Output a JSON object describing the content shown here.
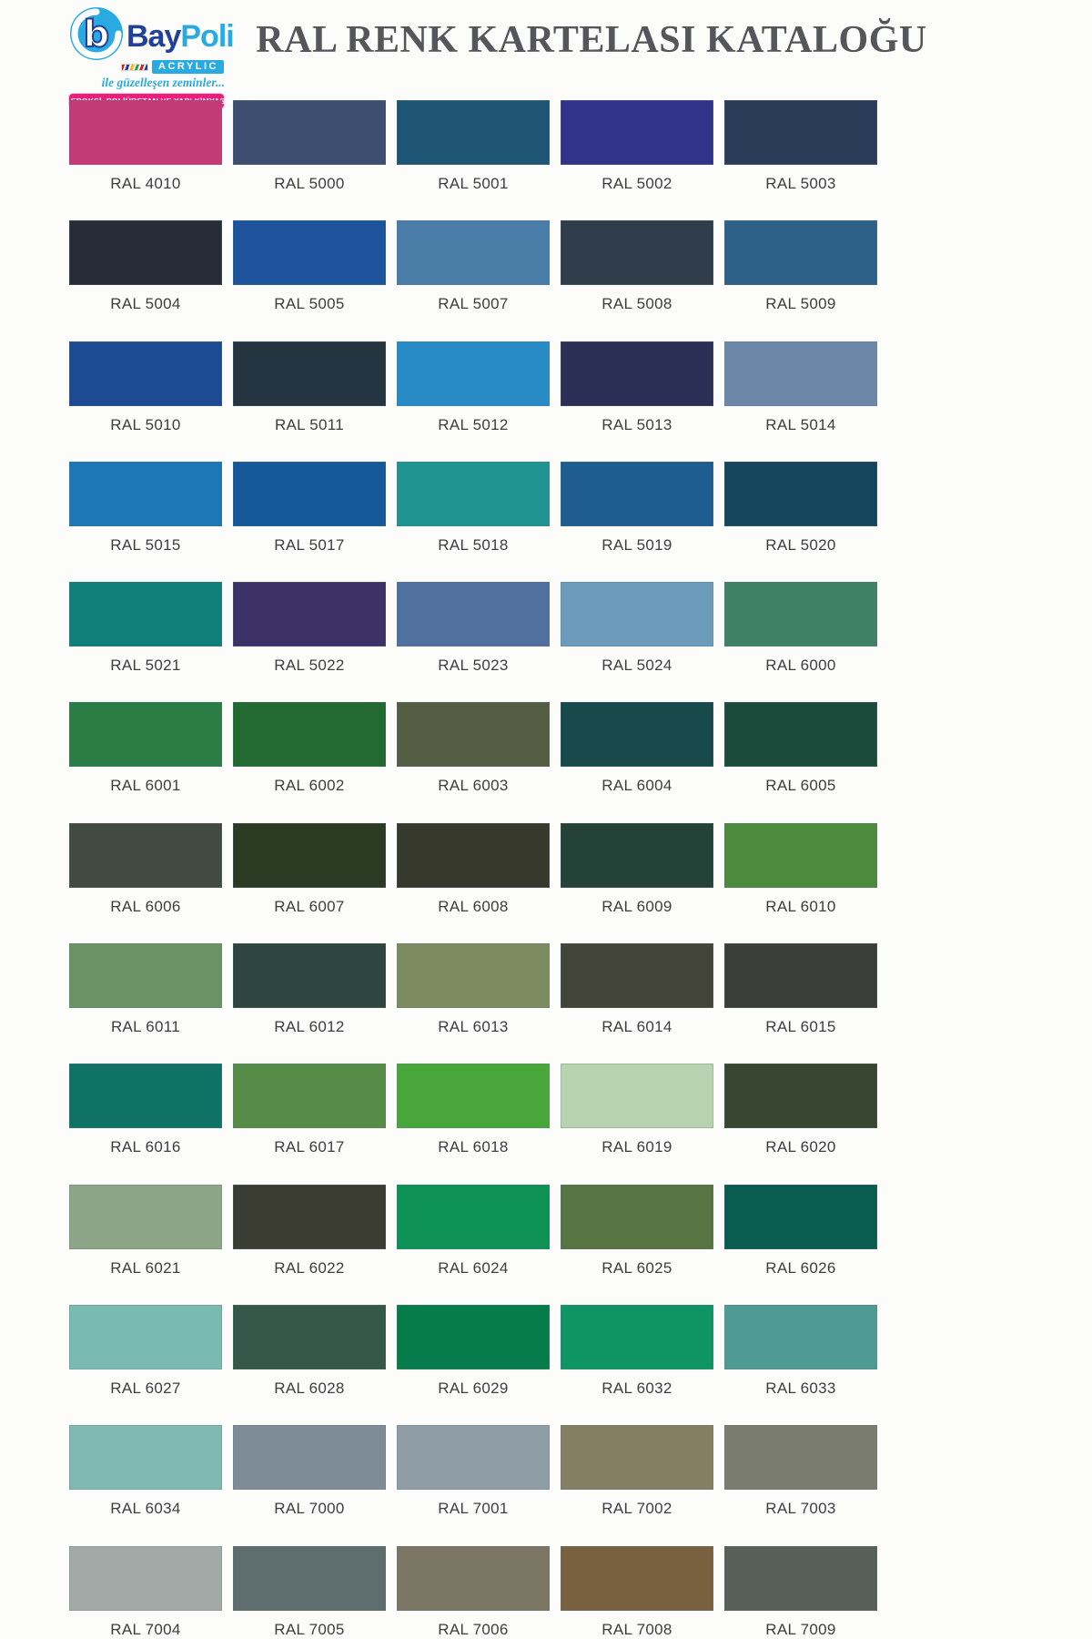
{
  "header": {
    "title": "RAL RENK KARTELASI KATALOĞU",
    "logo": {
      "brand_bay": "Bay",
      "brand_poli": "Poli",
      "acrylic_label": "ACRYLIC",
      "tagline": "ile güzelleşen zeminler...",
      "banner": "EPOKSİ, POLİÜRETAN VE YAPI KİMYASALLARI"
    }
  },
  "palette": {
    "accent_cyan": "#29ABE2",
    "accent_navy": "#21409A",
    "accent_magenta": "#EC1E79",
    "title_color": "#55565A",
    "label_color": "#3C3E40",
    "page_background": "#FCFCFA"
  },
  "swatches": [
    {
      "code": "RAL 4010",
      "hex": "#C43A76"
    },
    {
      "code": "RAL 5000",
      "hex": "#3D4E70"
    },
    {
      "code": "RAL 5001",
      "hex": "#1F5574"
    },
    {
      "code": "RAL 5002",
      "hex": "#31338A"
    },
    {
      "code": "RAL 5003",
      "hex": "#2B3C59"
    },
    {
      "code": "RAL 5004",
      "hex": "#282B38"
    },
    {
      "code": "RAL 5005",
      "hex": "#1D549B"
    },
    {
      "code": "RAL 5007",
      "hex": "#4A7CA8"
    },
    {
      "code": "RAL 5008",
      "hex": "#2F3E4A"
    },
    {
      "code": "RAL 5009",
      "hex": "#2D6187"
    },
    {
      "code": "RAL 5010",
      "hex": "#1C4B94"
    },
    {
      "code": "RAL 5011",
      "hex": "#253441"
    },
    {
      "code": "RAL 5012",
      "hex": "#298BC5"
    },
    {
      "code": "RAL 5013",
      "hex": "#2B2F55"
    },
    {
      "code": "RAL 5014",
      "hex": "#6D87A8"
    },
    {
      "code": "RAL 5015",
      "hex": "#1B77B5"
    },
    {
      "code": "RAL 5017",
      "hex": "#15599B"
    },
    {
      "code": "RAL 5018",
      "hex": "#1F9490"
    },
    {
      "code": "RAL 5019",
      "hex": "#1F5C8F"
    },
    {
      "code": "RAL 5020",
      "hex": "#14455C"
    },
    {
      "code": "RAL 5021",
      "hex": "#107E79"
    },
    {
      "code": "RAL 5022",
      "hex": "#3D3268"
    },
    {
      "code": "RAL 5023",
      "hex": "#50709E"
    },
    {
      "code": "RAL 5024",
      "hex": "#6C9BBB"
    },
    {
      "code": "RAL 6000",
      "hex": "#3F8165"
    },
    {
      "code": "RAL 6001",
      "hex": "#2B7D45"
    },
    {
      "code": "RAL 6002",
      "hex": "#226A32"
    },
    {
      "code": "RAL 6003",
      "hex": "#545C41"
    },
    {
      "code": "RAL 6004",
      "hex": "#184A4C"
    },
    {
      "code": "RAL 6005",
      "hex": "#1A4B3B"
    },
    {
      "code": "RAL 6006",
      "hex": "#424A41"
    },
    {
      "code": "RAL 6007",
      "hex": "#2C3B23"
    },
    {
      "code": "RAL 6008",
      "hex": "#37392D"
    },
    {
      "code": "RAL 6009",
      "hex": "#254238"
    },
    {
      "code": "RAL 6010",
      "hex": "#4C8A3E"
    },
    {
      "code": "RAL 6011",
      "hex": "#6B9465"
    },
    {
      "code": "RAL 6012",
      "hex": "#2F453F"
    },
    {
      "code": "RAL 6013",
      "hex": "#7E8B60"
    },
    {
      "code": "RAL 6014",
      "hex": "#44453A"
    },
    {
      "code": "RAL 6015",
      "hex": "#3B3E38"
    },
    {
      "code": "RAL 6016",
      "hex": "#0F7264"
    },
    {
      "code": "RAL 6017",
      "hex": "#568C48"
    },
    {
      "code": "RAL 6018",
      "hex": "#49A63B"
    },
    {
      "code": "RAL 6019",
      "hex": "#B7D2AE"
    },
    {
      "code": "RAL 6020",
      "hex": "#384530"
    },
    {
      "code": "RAL 6021",
      "hex": "#8BA586"
    },
    {
      "code": "RAL 6022",
      "hex": "#3B3D33"
    },
    {
      "code": "RAL 6024",
      "hex": "#0E9155"
    },
    {
      "code": "RAL 6025",
      "hex": "#577543"
    },
    {
      "code": "RAL 6026",
      "hex": "#0A5C50"
    },
    {
      "code": "RAL 6027",
      "hex": "#79BAB1"
    },
    {
      "code": "RAL 6028",
      "hex": "#36584B"
    },
    {
      "code": "RAL 6029",
      "hex": "#067C4A"
    },
    {
      "code": "RAL 6032",
      "hex": "#0F9465"
    },
    {
      "code": "RAL 6033",
      "hex": "#4F9A93"
    },
    {
      "code": "RAL 6034",
      "hex": "#7FB9B1"
    },
    {
      "code": "RAL 7000",
      "hex": "#7E8C98"
    },
    {
      "code": "RAL 7001",
      "hex": "#8E9DA6"
    },
    {
      "code": "RAL 7002",
      "hex": "#847F64"
    },
    {
      "code": "RAL 7003",
      "hex": "#7A7C70"
    },
    {
      "code": "RAL 7004",
      "hex": "#A3A9A7"
    },
    {
      "code": "RAL 7005",
      "hex": "#5E6E6F"
    },
    {
      "code": "RAL 7006",
      "hex": "#7B7563"
    },
    {
      "code": "RAL 7008",
      "hex": "#77613E"
    },
    {
      "code": "RAL 7009",
      "hex": "#575F58"
    }
  ]
}
